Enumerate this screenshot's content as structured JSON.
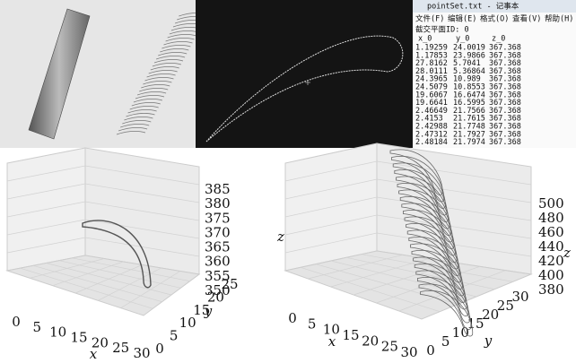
{
  "notepad": {
    "title": "pointSet.txt - 记事本",
    "menu": [
      "文件(F)",
      "编辑(E)",
      "格式(O)",
      "查看(V)",
      "帮助(H)"
    ],
    "heading": "截交平面ID: 0",
    "columns": [
      "x_0",
      "y_0",
      "z_0"
    ],
    "rows": [
      [
        1.19259,
        24.0019,
        367.368
      ],
      [
        1.17853,
        23.9866,
        367.368
      ],
      [
        27.8162,
        5.7041,
        367.368
      ],
      [
        28.0111,
        5.36864,
        367.368
      ],
      [
        24.3965,
        10.989,
        367.368
      ],
      [
        24.5079,
        10.8553,
        367.368
      ],
      [
        19.6067,
        16.6474,
        367.368
      ],
      [
        19.6641,
        16.5995,
        367.368
      ],
      [
        2.46649,
        21.7566,
        367.368
      ],
      [
        2.4153,
        21.7615,
        367.368
      ],
      [
        2.42988,
        21.7748,
        367.368
      ],
      [
        2.47312,
        21.7927,
        367.368
      ],
      [
        2.48184,
        21.7974,
        367.368
      ]
    ]
  },
  "plots": [
    {
      "x_label": "x",
      "y_label": "y",
      "x_ticks": [
        0,
        5,
        10,
        15,
        20,
        25,
        30
      ],
      "y_ticks": [
        0,
        5,
        10,
        15,
        20,
        25
      ],
      "z_ticks": [
        385,
        380,
        375,
        370,
        365,
        360,
        355,
        350
      ]
    },
    {
      "x_label": "x",
      "y_label": "y",
      "z_label": "z",
      "x_ticks": [
        0,
        5,
        10,
        15,
        20,
        25,
        30
      ],
      "y_ticks": [
        0,
        5,
        10,
        15,
        20,
        25,
        30
      ],
      "z_ticks": [
        500,
        480,
        460,
        440,
        420,
        400,
        380
      ]
    }
  ]
}
